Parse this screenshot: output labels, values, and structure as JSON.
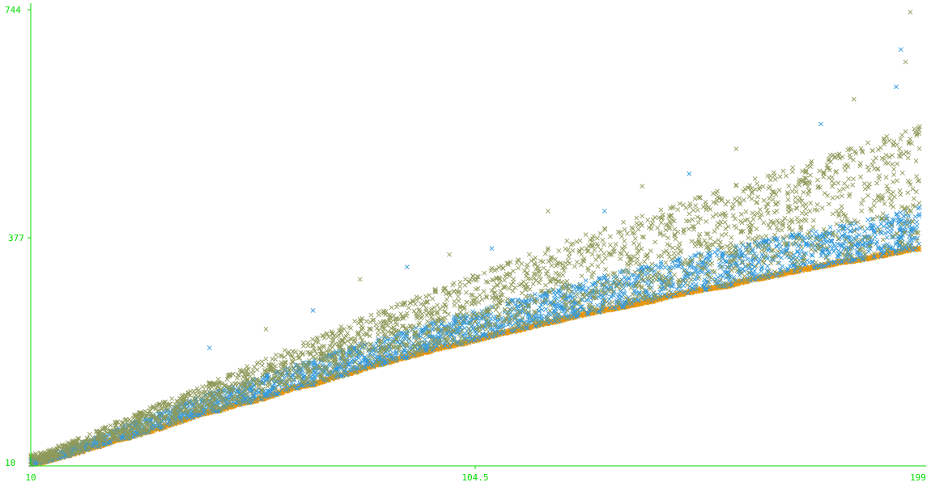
{
  "chart_data": {
    "type": "scatter",
    "title": "",
    "xlabel": "",
    "ylabel": "",
    "xlim": [
      10,
      199
    ],
    "ylim": [
      10,
      744
    ],
    "x_tick_labels": [
      "10",
      "104.5",
      "199"
    ],
    "y_tick_labels": [
      "744",
      "377",
      "10"
    ],
    "grid": false,
    "legend": "none",
    "marker": "x",
    "axis_color": "#00dd00",
    "series": [
      {
        "color": "#e8960c",
        "values_note": "",
        "points": [
          [
            10,
            12
          ],
          [
            12,
            14
          ],
          [
            14,
            18
          ],
          [
            16,
            22
          ],
          [
            18,
            26
          ],
          [
            20,
            30
          ],
          [
            22,
            36
          ],
          [
            25,
            42
          ],
          [
            28,
            50
          ],
          [
            31,
            55
          ],
          [
            34,
            62
          ],
          [
            37,
            68
          ],
          [
            40,
            76
          ],
          [
            43,
            84
          ],
          [
            46,
            92
          ],
          [
            50,
            98
          ],
          [
            54,
            108
          ],
          [
            58,
            114
          ],
          [
            62,
            124
          ],
          [
            66,
            134
          ],
          [
            70,
            140
          ],
          [
            74,
            150
          ],
          [
            78,
            158
          ],
          [
            82,
            168
          ],
          [
            86,
            176
          ],
          [
            90,
            184
          ],
          [
            94,
            192
          ],
          [
            98,
            200
          ],
          [
            102,
            206
          ],
          [
            106,
            214
          ],
          [
            110,
            222
          ],
          [
            114,
            228
          ],
          [
            118,
            236
          ],
          [
            122,
            242
          ],
          [
            126,
            250
          ],
          [
            130,
            256
          ],
          [
            134,
            262
          ],
          [
            138,
            268
          ],
          [
            142,
            274
          ],
          [
            146,
            282
          ],
          [
            150,
            288
          ],
          [
            154,
            294
          ],
          [
            158,
            298
          ],
          [
            162,
            306
          ],
          [
            166,
            312
          ],
          [
            170,
            318
          ],
          [
            174,
            324
          ],
          [
            178,
            330
          ],
          [
            182,
            336
          ],
          [
            186,
            340
          ],
          [
            190,
            346
          ],
          [
            194,
            352
          ],
          [
            198,
            358
          ]
        ]
      },
      {
        "color": "#3399dd",
        "points": [
          [
            11,
            20
          ],
          [
            13,
            26
          ],
          [
            15,
            32
          ],
          [
            18,
            40
          ],
          [
            21,
            48
          ],
          [
            24,
            56
          ],
          [
            27,
            66
          ],
          [
            30,
            76
          ],
          [
            33,
            84
          ],
          [
            36,
            92
          ],
          [
            39,
            100
          ],
          [
            42,
            110
          ],
          [
            45,
            118
          ],
          [
            48,
            128
          ],
          [
            52,
            136
          ],
          [
            56,
            146
          ],
          [
            60,
            156
          ],
          [
            64,
            166
          ],
          [
            68,
            176
          ],
          [
            72,
            186
          ],
          [
            76,
            196
          ],
          [
            80,
            206
          ],
          [
            84,
            214
          ],
          [
            88,
            224
          ],
          [
            92,
            232
          ],
          [
            96,
            242
          ],
          [
            100,
            250
          ],
          [
            104,
            258
          ],
          [
            108,
            266
          ],
          [
            112,
            276
          ],
          [
            116,
            284
          ],
          [
            120,
            292
          ],
          [
            124,
            300
          ],
          [
            128,
            308
          ],
          [
            132,
            316
          ],
          [
            136,
            324
          ],
          [
            140,
            330
          ],
          [
            144,
            338
          ],
          [
            148,
            344
          ],
          [
            152,
            352
          ],
          [
            156,
            358
          ],
          [
            160,
            364
          ],
          [
            164,
            370
          ],
          [
            168,
            376
          ],
          [
            172,
            382
          ],
          [
            176,
            388
          ],
          [
            180,
            394
          ],
          [
            184,
            400
          ],
          [
            188,
            406
          ],
          [
            192,
            412
          ],
          [
            196,
            420
          ],
          [
            199,
            426
          ]
        ]
      },
      {
        "color": "#8f9a5a",
        "points": [
          [
            12,
            30
          ],
          [
            16,
            42
          ],
          [
            20,
            54
          ],
          [
            24,
            66
          ],
          [
            28,
            80
          ],
          [
            32,
            92
          ],
          [
            36,
            106
          ],
          [
            40,
            118
          ],
          [
            44,
            130
          ],
          [
            48,
            144
          ],
          [
            52,
            156
          ],
          [
            56,
            170
          ],
          [
            60,
            182
          ],
          [
            64,
            196
          ],
          [
            68,
            208
          ],
          [
            72,
            220
          ],
          [
            76,
            234
          ],
          [
            80,
            246
          ],
          [
            84,
            258
          ],
          [
            88,
            270
          ],
          [
            92,
            282
          ],
          [
            96,
            294
          ],
          [
            100,
            304
          ],
          [
            104,
            316
          ],
          [
            108,
            328
          ],
          [
            112,
            338
          ],
          [
            116,
            350
          ],
          [
            120,
            360
          ],
          [
            124,
            372
          ],
          [
            128,
            382
          ],
          [
            132,
            392
          ],
          [
            136,
            402
          ],
          [
            140,
            412
          ],
          [
            144,
            422
          ],
          [
            148,
            432
          ],
          [
            152,
            442
          ],
          [
            156,
            452
          ],
          [
            160,
            462
          ],
          [
            164,
            472
          ],
          [
            168,
            482
          ],
          [
            172,
            490
          ],
          [
            176,
            500
          ],
          [
            180,
            510
          ],
          [
            184,
            520
          ],
          [
            188,
            530
          ],
          [
            192,
            540
          ],
          [
            196,
            548
          ],
          [
            199,
            556
          ]
        ]
      }
    ],
    "outliers": [
      [
        197,
        740
      ],
      [
        195,
        680
      ],
      [
        196,
        660
      ],
      [
        194,
        620
      ],
      [
        185,
        600
      ],
      [
        178,
        560
      ],
      [
        160,
        520
      ],
      [
        150,
        480
      ],
      [
        140,
        460
      ],
      [
        132,
        420
      ],
      [
        120,
        420
      ],
      [
        108,
        360
      ],
      [
        99,
        350
      ],
      [
        90,
        330
      ],
      [
        80,
        310
      ],
      [
        70,
        260
      ],
      [
        60,
        230
      ],
      [
        48,
        200
      ]
    ]
  }
}
